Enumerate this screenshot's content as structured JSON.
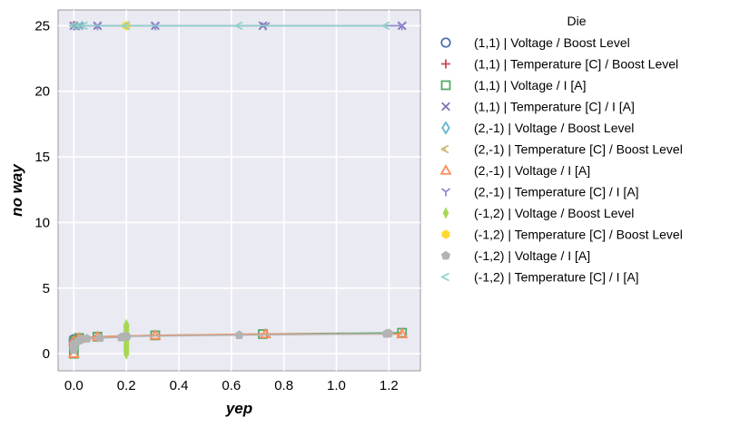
{
  "chart_data": {
    "type": "scatter",
    "title": "",
    "xlabel": "yep",
    "ylabel": "no way",
    "xlim": [
      -0.06,
      1.32
    ],
    "ylim": [
      -1.3,
      26.2
    ],
    "xticks": [
      0.0,
      0.2,
      0.4,
      0.6,
      0.8,
      1.0,
      1.2
    ],
    "xtick_labels": [
      "0.0",
      "0.2",
      "0.4",
      "0.6",
      "0.8",
      "1.0",
      "1.2"
    ],
    "yticks": [
      0,
      5,
      10,
      15,
      20,
      25
    ],
    "ytick_labels": [
      "0",
      "5",
      "10",
      "15",
      "20",
      "25"
    ],
    "grid": true,
    "legend": {
      "title": "Die",
      "placement": "outside-right"
    },
    "series": [
      {
        "name": "(1,1) | Voltage / Boost Level",
        "marker": "circle",
        "color": "#4C72B0",
        "x": [
          0.0,
          0.0,
          0.0
        ],
        "y": [
          0.8,
          1.0,
          1.1
        ]
      },
      {
        "name": "(1,1) | Temperature [C] / Boost Level",
        "marker": "plus",
        "color": "#C44E52",
        "x": [
          0.0,
          0.0
        ],
        "y": [
          25.0,
          25.0
        ]
      },
      {
        "name": "(1,1) | Voltage / I [A]",
        "marker": "square",
        "color": "#55A868",
        "line": true,
        "x": [
          0.0,
          0.0,
          0.0,
          0.02,
          0.09,
          0.31,
          0.72,
          1.25
        ],
        "y": [
          0.0,
          0.6,
          1.0,
          1.2,
          1.3,
          1.4,
          1.5,
          1.6
        ]
      },
      {
        "name": "(1,1) | Temperature [C] / I [A]",
        "marker": "x",
        "color": "#8172B2",
        "line": true,
        "x": [
          0.0,
          0.02,
          0.09,
          0.31,
          0.72,
          1.25
        ],
        "y": [
          25.0,
          25.0,
          25.0,
          25.0,
          25.0,
          25.0
        ]
      },
      {
        "name": "(2,-1) | Voltage / Boost Level",
        "marker": "diamond",
        "color": "#64B5CD",
        "x": [
          0.2,
          0.2
        ],
        "y": [
          1.2,
          1.4
        ]
      },
      {
        "name": "(2,-1) | Temperature [C] / Boost Level",
        "marker": "tri_left",
        "color": "#CCB974",
        "x": [
          0.2,
          0.2
        ],
        "y": [
          25.0,
          25.0
        ]
      },
      {
        "name": "(2,-1) | Voltage / I [A]",
        "marker": "triangle",
        "color": "#FF8C5A",
        "line": true,
        "x": [
          0.0,
          0.0,
          0.02,
          0.09,
          0.31,
          0.73,
          1.25
        ],
        "y": [
          0.0,
          1.0,
          1.2,
          1.3,
          1.4,
          1.5,
          1.5
        ]
      },
      {
        "name": "(2,-1) | Temperature [C] / I [A]",
        "marker": "tri_down",
        "color": "#8C8FD0",
        "line": true,
        "x": [
          0.0,
          0.02,
          0.09,
          0.31,
          0.73,
          1.25
        ],
        "y": [
          25.0,
          25.0,
          25.0,
          25.0,
          25.0,
          25.0
        ]
      },
      {
        "name": "(-1,2) | Voltage / Boost Level",
        "marker": "thin_diamond",
        "color": "#A6D854",
        "x": [
          0.2,
          0.2,
          0.2,
          0.2,
          0.2,
          0.2,
          0.2,
          0.2,
          0.2,
          0.2,
          0.2,
          0.2,
          0.2
        ],
        "y": [
          0.0,
          0.2,
          0.4,
          0.6,
          0.8,
          1.0,
          1.2,
          1.4,
          1.6,
          1.8,
          2.0,
          2.1,
          2.2
        ]
      },
      {
        "name": "(-1,2) | Temperature [C] / Boost Level",
        "marker": "hexagon",
        "color": "#FFD92F",
        "x": [
          0.2,
          0.2
        ],
        "y": [
          25.0,
          25.0
        ]
      },
      {
        "name": "(-1,2) | Voltage / I [A]",
        "marker": "pentagon",
        "color": "#B3B3B3",
        "line": true,
        "x": [
          0.0,
          0.0,
          0.0,
          0.01,
          0.02,
          0.03,
          0.05,
          0.1,
          0.18,
          0.19,
          0.2,
          0.63,
          1.19,
          1.2
        ],
        "y": [
          0.3,
          0.5,
          0.7,
          0.9,
          1.0,
          1.1,
          1.15,
          1.2,
          1.25,
          1.3,
          1.32,
          1.42,
          1.52,
          1.55
        ]
      },
      {
        "name": "(-1,2) | Temperature [C] / I [A]",
        "marker": "caret_left",
        "color": "#8DD3C7",
        "line": true,
        "x": [
          0.0,
          0.02,
          0.04,
          0.2,
          0.63,
          1.19
        ],
        "y": [
          25.0,
          25.0,
          25.0,
          25.0,
          25.0,
          25.0
        ]
      }
    ]
  }
}
